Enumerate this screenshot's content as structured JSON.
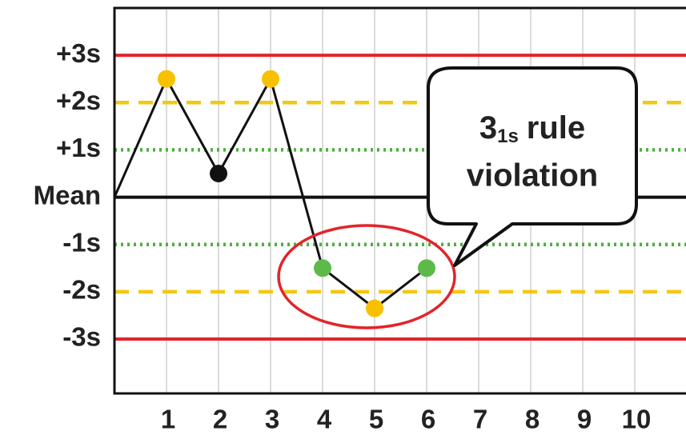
{
  "chart_data": {
    "type": "line",
    "x": [
      0,
      1,
      2,
      3,
      4,
      5,
      6
    ],
    "xlim": [
      0,
      11
    ],
    "xticks": [
      1,
      2,
      3,
      4,
      5,
      6,
      7,
      8,
      9,
      10
    ],
    "ylim": [
      -4.15,
      4
    ],
    "yticks": [
      {
        "value": 3,
        "label": "+3s"
      },
      {
        "value": 2,
        "label": "+2s"
      },
      {
        "value": 1,
        "label": "+1s"
      },
      {
        "value": 0,
        "label": "Mean"
      },
      {
        "value": -1,
        "label": "-1s"
      },
      {
        "value": -2,
        "label": "-2s"
      },
      {
        "value": -3,
        "label": "-3s"
      }
    ],
    "tick_line_styles": [
      {
        "color": "#e3242b",
        "dash": "solid"
      },
      {
        "color": "#f2c811",
        "dash": "dashed"
      },
      {
        "color": "#4caf3f",
        "dash": "dotted"
      },
      {
        "color": "#111111",
        "dash": "solid"
      },
      {
        "color": "#4caf3f",
        "dash": "dotted"
      },
      {
        "color": "#f2c811",
        "dash": "dashed"
      },
      {
        "color": "#e3242b",
        "dash": "solid"
      }
    ],
    "grid": true,
    "series": [
      {
        "color": "#111111",
        "values": [
          0,
          2.5,
          0.5,
          2.5,
          -1.5,
          -2.35,
          -1.5
        ],
        "marker_colors": [
          null,
          "#f7c100",
          "#111111",
          "#f7c100",
          "#5cb94a",
          "#f7c100",
          "#5cb94a"
        ]
      }
    ],
    "annotation": {
      "main": "3",
      "subscript": "1s",
      "rest": "rule",
      "line2": "violation"
    }
  }
}
